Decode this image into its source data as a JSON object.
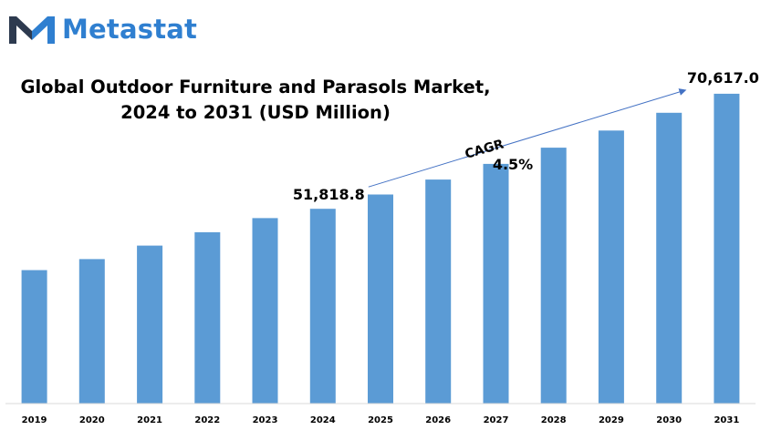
{
  "brand": {
    "name": "Metastat",
    "logo_icon": "m-logo-icon",
    "color": "#2f7fd0",
    "icon_dark_color": "#2d3a4f"
  },
  "chart_data": {
    "type": "bar",
    "title_line1": "Global Outdoor Furniture and Parasols Market,",
    "title_line2": "2024 to 2031 (USD Million)",
    "categories": [
      "2019",
      "2020",
      "2021",
      "2022",
      "2023",
      "2024",
      "2025",
      "2026",
      "2027",
      "2028",
      "2029",
      "2030",
      "2031"
    ],
    "values": [
      41800,
      43600,
      45800,
      48000,
      50300,
      51818.8,
      54150,
      56600,
      59150,
      61800,
      64600,
      67500,
      70617.0
    ],
    "ylim": [
      20000,
      77000
    ],
    "bar_color": "#5b9bd5",
    "grid": false,
    "data_labels": [
      {
        "category": "2024",
        "text": "51,818.8"
      },
      {
        "category": "2031",
        "text": "70,617.0"
      }
    ],
    "cagr": {
      "label": "CAGR",
      "value": "4.5%",
      "from": "2024",
      "to": "2031",
      "arrow_color": "#4472c4"
    }
  }
}
